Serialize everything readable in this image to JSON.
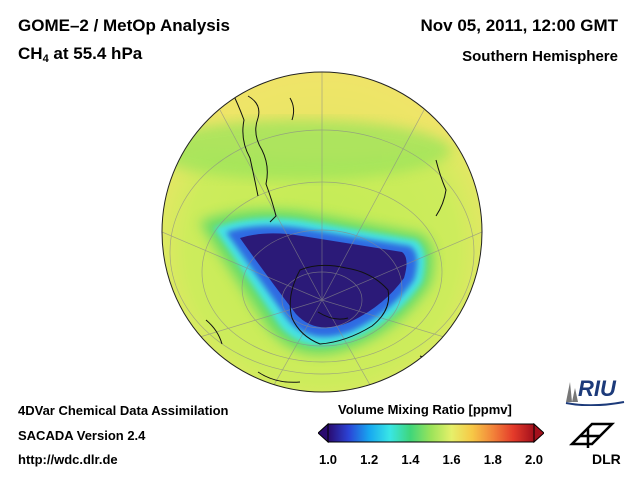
{
  "header": {
    "title": "GOME–2 / MetOp Analysis",
    "species_main": "CH",
    "species_sub": "4",
    "species_level": " at 55.4 hPa",
    "date": "Nov 05, 2011, 12:00 GMT",
    "region": "Southern Hemisphere"
  },
  "footer": {
    "line1": "4DVar Chemical Data Assimilation",
    "line2": "SACADA Version 2.4",
    "line3": "http://wdc.dlr.de"
  },
  "colorbar": {
    "title": "Volume Mixing Ratio [ppmv]",
    "min": 1.0,
    "max": 2.0,
    "ticks": [
      "1.0",
      "1.2",
      "1.4",
      "1.6",
      "1.8",
      "2.0"
    ],
    "colors": [
      "#2a0a6e",
      "#2b43d6",
      "#17a7f0",
      "#39e6e6",
      "#3fd67a",
      "#9be35a",
      "#e6f06a",
      "#f7c846",
      "#f2843a",
      "#e43a2a",
      "#a3101c"
    ]
  },
  "map": {
    "projection": "orthographic",
    "center": "South Pole",
    "field_colors": {
      "vortex_core": "#2b1d7a",
      "vortex_edge": "#2e63e0",
      "vortex_ring": "#43e0e6",
      "collar": "#49d866",
      "background": "#c7ec58",
      "outer": "#f2e86a"
    }
  },
  "logos": {
    "riu_text": "RIU",
    "dlr_text": "DLR"
  }
}
